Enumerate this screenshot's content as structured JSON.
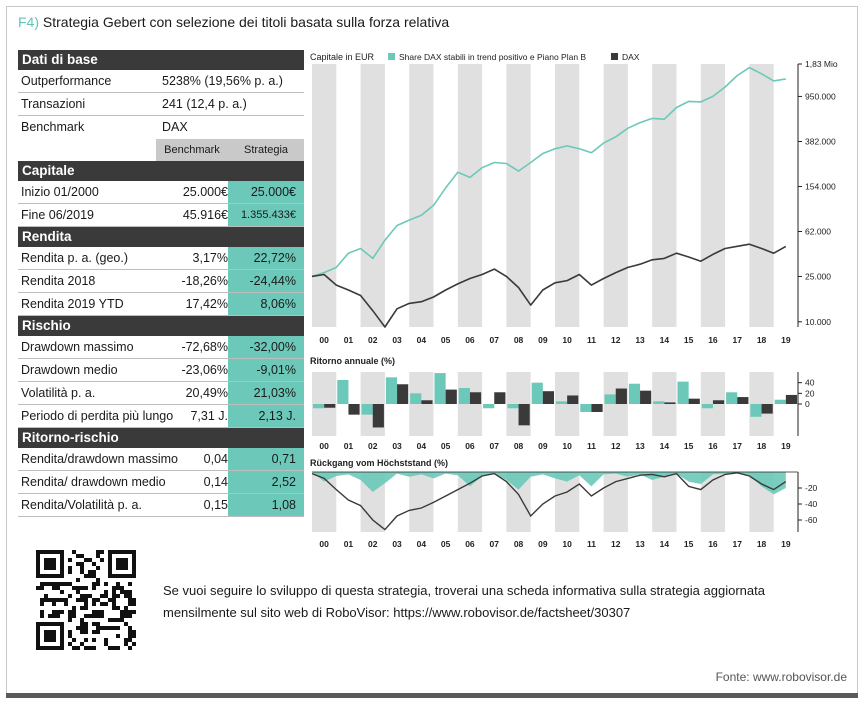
{
  "figure": {
    "label": "F4)",
    "title": "Strategia Gebert con selezione dei titoli basata sulla forza relativa",
    "note_line1": "Se vuoi seguire lo sviluppo di questa strategia, troverai una scheda informativa sulla strategia aggiornata",
    "note_line2": "mensilmente sul sito web di RoboVisor: https://www.robovisor.de/factsheet/30307",
    "source": "Fonte: www.robovisor.de"
  },
  "table": {
    "base": {
      "title": "Dati di base",
      "rows": [
        {
          "label": "Outperformance",
          "value": "5238% (19,56% p. a.)"
        },
        {
          "label": "Transazioni",
          "value": "241 (12,4 p. a.)"
        },
        {
          "label": "Benchmark",
          "value": "DAX"
        }
      ],
      "col_benchmark": "Benchmark",
      "col_strategy": "Strategia"
    },
    "sections": [
      {
        "title": "Capitale",
        "rows": [
          {
            "label": "Inizio 01/2000",
            "bench": "25.000€",
            "strat": "25.000€"
          },
          {
            "label": "Fine 06/2019",
            "bench": "45.916€",
            "strat": "1.355.433€"
          }
        ]
      },
      {
        "title": "Rendita",
        "rows": [
          {
            "label": "Rendita p. a. (geo.)",
            "bench": "3,17%",
            "strat": "22,72%"
          },
          {
            "label": "Rendita 2018",
            "bench": "-18,26%",
            "strat": "-24,44%"
          },
          {
            "label": "Rendita 2019 YTD",
            "bench": "17,42%",
            "strat": "8,06%"
          }
        ]
      },
      {
        "title": "Rischio",
        "rows": [
          {
            "label": "Drawdown massimo",
            "bench": "-72,68%",
            "strat": "-32,00%"
          },
          {
            "label": "Drawdown medio",
            "bench": "-23,06%",
            "strat": "-9,01%"
          },
          {
            "label": "Volatilità p. a.",
            "bench": "20,49%",
            "strat": "21,03%"
          },
          {
            "label": "Periodo di perdita più lungo",
            "bench": "7,31 J.",
            "strat": "2,13 J."
          }
        ]
      },
      {
        "title": "Ritorno-rischio",
        "rows": [
          {
            "label": "Rendita/drawdown massimo",
            "bench": "0,04",
            "strat": "0,71"
          },
          {
            "label": "Rendita/ drawdown medio",
            "bench": "0,14",
            "strat": "2,52"
          },
          {
            "label": "Rendita/Volatilità p. a.",
            "bench": "0,15",
            "strat": "1,08"
          }
        ]
      }
    ]
  },
  "colors": {
    "strategy": "#6cc9b9",
    "dax": "#3a3a3a",
    "stripe": "#e0e0e0",
    "header": "#3a3a3a"
  },
  "chart_data": [
    {
      "type": "line",
      "title": "Capitale in EUR",
      "log_scale": true,
      "x_tick_labels": [
        "00",
        "01",
        "02",
        "03",
        "04",
        "05",
        "06",
        "07",
        "08",
        "09",
        "10",
        "11",
        "12",
        "13",
        "14",
        "15",
        "16",
        "17",
        "18",
        "19"
      ],
      "y_tick_labels": [
        "1,83 Mio",
        "950.000",
        "382.000",
        "154.000",
        "62.000",
        "25.000",
        "10.000"
      ],
      "y_ticks": [
        1830000,
        950000,
        382000,
        154000,
        62000,
        25000,
        10000
      ],
      "ylim": [
        9000,
        1830000
      ],
      "series": [
        {
          "name": "Share DAX stabili in trend positivo e Piano Plan B",
          "color": "#6cc9b9",
          "x": [
            2000.0,
            2000.5,
            2001.0,
            2001.5,
            2002.0,
            2002.5,
            2003.0,
            2003.5,
            2004.0,
            2004.5,
            2005.0,
            2005.5,
            2006.0,
            2006.5,
            2007.0,
            2007.5,
            2008.0,
            2008.5,
            2009.0,
            2009.5,
            2010.0,
            2010.5,
            2011.0,
            2011.5,
            2012.0,
            2012.5,
            2013.0,
            2013.5,
            2014.0,
            2014.5,
            2015.0,
            2015.5,
            2016.0,
            2016.5,
            2017.0,
            2017.5,
            2018.0,
            2018.5,
            2019.0,
            2019.5
          ],
          "values": [
            25000,
            27000,
            30000,
            40000,
            44000,
            36000,
            52000,
            70000,
            78000,
            86000,
            105000,
            150000,
            205000,
            185000,
            225000,
            250000,
            245000,
            210000,
            250000,
            300000,
            330000,
            350000,
            330000,
            305000,
            370000,
            420000,
            500000,
            560000,
            610000,
            600000,
            760000,
            860000,
            850000,
            950000,
            1150000,
            1450000,
            1700000,
            1500000,
            1300000,
            1355433
          ]
        },
        {
          "name": "DAX",
          "color": "#3a3a3a",
          "x": [
            2000.0,
            2000.5,
            2001.0,
            2001.5,
            2002.0,
            2002.5,
            2003.0,
            2003.5,
            2004.0,
            2004.5,
            2005.0,
            2005.5,
            2006.0,
            2006.5,
            2007.0,
            2007.5,
            2008.0,
            2008.5,
            2009.0,
            2009.5,
            2010.0,
            2010.5,
            2011.0,
            2011.5,
            2012.0,
            2012.5,
            2013.0,
            2013.5,
            2014.0,
            2014.5,
            2015.0,
            2015.5,
            2016.0,
            2016.5,
            2017.0,
            2017.5,
            2018.0,
            2018.5,
            2019.0,
            2019.5
          ],
          "values": [
            25000,
            26000,
            21000,
            19000,
            17000,
            12500,
            9000,
            13000,
            14500,
            15000,
            16500,
            19000,
            21500,
            24000,
            26000,
            29000,
            25000,
            20000,
            14000,
            19000,
            22000,
            23000,
            26000,
            21000,
            24000,
            27000,
            30000,
            32000,
            35000,
            36000,
            40000,
            37000,
            34000,
            39000,
            44000,
            46000,
            48000,
            44000,
            40000,
            45916
          ]
        }
      ]
    },
    {
      "type": "bar",
      "title": "Ritorno annuale (%)",
      "categories": [
        "00",
        "01",
        "02",
        "03",
        "04",
        "05",
        "06",
        "07",
        "08",
        "09",
        "10",
        "11",
        "12",
        "13",
        "14",
        "15",
        "16",
        "17",
        "18",
        "19"
      ],
      "y_tick_labels": [
        "40",
        "20",
        "0"
      ],
      "ylim": [
        -60,
        60
      ],
      "series": [
        {
          "name": "Share DAX stabili in trend positivo e Piano Plan B",
          "color": "#6cc9b9",
          "values": [
            -8,
            45,
            -20,
            50,
            20,
            58,
            30,
            -8,
            -8,
            40,
            5,
            -15,
            18,
            38,
            5,
            42,
            -8,
            22,
            -24,
            8
          ]
        },
        {
          "name": "DAX",
          "color": "#3a3a3a",
          "values": [
            -7,
            -20,
            -44,
            37,
            7,
            27,
            22,
            22,
            -40,
            24,
            16,
            -15,
            29,
            25,
            3,
            10,
            7,
            13,
            -18,
            17
          ]
        }
      ]
    },
    {
      "type": "area",
      "title": "Rückgang vom Höchststand (%)",
      "x_tick_labels": [
        "00",
        "01",
        "02",
        "03",
        "04",
        "05",
        "06",
        "07",
        "08",
        "09",
        "10",
        "11",
        "12",
        "13",
        "14",
        "15",
        "16",
        "17",
        "18",
        "19"
      ],
      "y_tick_labels": [
        "-20",
        "-40",
        "-60"
      ],
      "ylim": [
        -75,
        0
      ],
      "series": [
        {
          "name": "Share DAX stabili in trend positivo e Piano Plan B",
          "color": "#6cc9b9",
          "x": [
            2000.0,
            2000.5,
            2001.0,
            2001.5,
            2002.0,
            2002.5,
            2003.0,
            2003.5,
            2004.0,
            2004.5,
            2005.0,
            2005.5,
            2006.0,
            2006.5,
            2007.0,
            2007.5,
            2008.0,
            2008.5,
            2009.0,
            2009.5,
            2010.0,
            2010.5,
            2011.0,
            2011.5,
            2012.0,
            2012.5,
            2013.0,
            2013.5,
            2014.0,
            2014.5,
            2015.0,
            2015.5,
            2016.0,
            2016.5,
            2017.0,
            2017.5,
            2018.0,
            2018.5,
            2019.0,
            2019.5
          ],
          "values": [
            0,
            -12,
            -5,
            -3,
            -10,
            -25,
            -14,
            -2,
            -6,
            -3,
            -8,
            -2,
            -4,
            -18,
            -5,
            -2,
            -10,
            -22,
            -6,
            -3,
            -8,
            -12,
            -4,
            -18,
            -3,
            -2,
            -6,
            -3,
            -10,
            -6,
            -2,
            -12,
            -15,
            -3,
            -2,
            -1,
            -4,
            -18,
            -28,
            -20
          ]
        },
        {
          "name": "DAX",
          "color": "#3a3a3a",
          "x": [
            2000.0,
            2000.5,
            2001.0,
            2001.5,
            2002.0,
            2002.5,
            2003.0,
            2003.5,
            2004.0,
            2004.5,
            2005.0,
            2005.5,
            2006.0,
            2006.5,
            2007.0,
            2007.5,
            2008.0,
            2008.5,
            2009.0,
            2009.5,
            2010.0,
            2010.5,
            2011.0,
            2011.5,
            2012.0,
            2012.5,
            2013.0,
            2013.5,
            2014.0,
            2014.5,
            2015.0,
            2015.5,
            2016.0,
            2016.5,
            2017.0,
            2017.5,
            2018.0,
            2018.5,
            2019.0,
            2019.5
          ],
          "values": [
            -2,
            -8,
            -22,
            -35,
            -42,
            -60,
            -72,
            -55,
            -48,
            -45,
            -38,
            -30,
            -22,
            -14,
            -5,
            -2,
            -12,
            -28,
            -55,
            -40,
            -30,
            -25,
            -15,
            -30,
            -20,
            -12,
            -8,
            -4,
            -3,
            -6,
            -2,
            -18,
            -22,
            -10,
            -3,
            -1,
            -5,
            -15,
            -22,
            -12
          ]
        }
      ]
    }
  ]
}
